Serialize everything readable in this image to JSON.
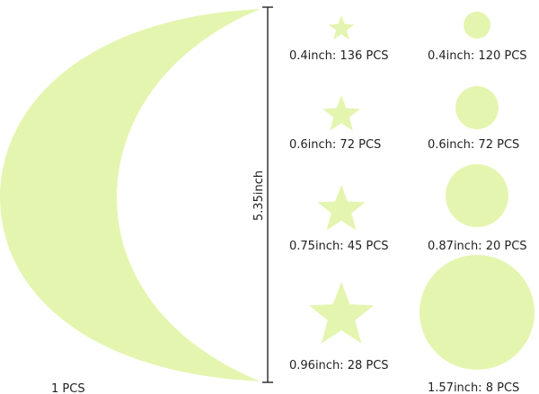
{
  "moon": {
    "label": "1 PCS"
  },
  "dimension": "5.35inch",
  "stars": [
    {
      "label": "0.4inch: 136 PCS"
    },
    {
      "label": "0.6inch: 72 PCS"
    },
    {
      "label": "0.75inch: 45 PCS"
    },
    {
      "label": "0.96inch: 28 PCS"
    }
  ],
  "circles": [
    {
      "label": "0.4inch: 120 PCS"
    },
    {
      "label": "0.6inch: 72 PCS"
    },
    {
      "label": "0.87inch: 20 PCS"
    },
    {
      "label": "1.57inch: 8 PCS"
    }
  ]
}
